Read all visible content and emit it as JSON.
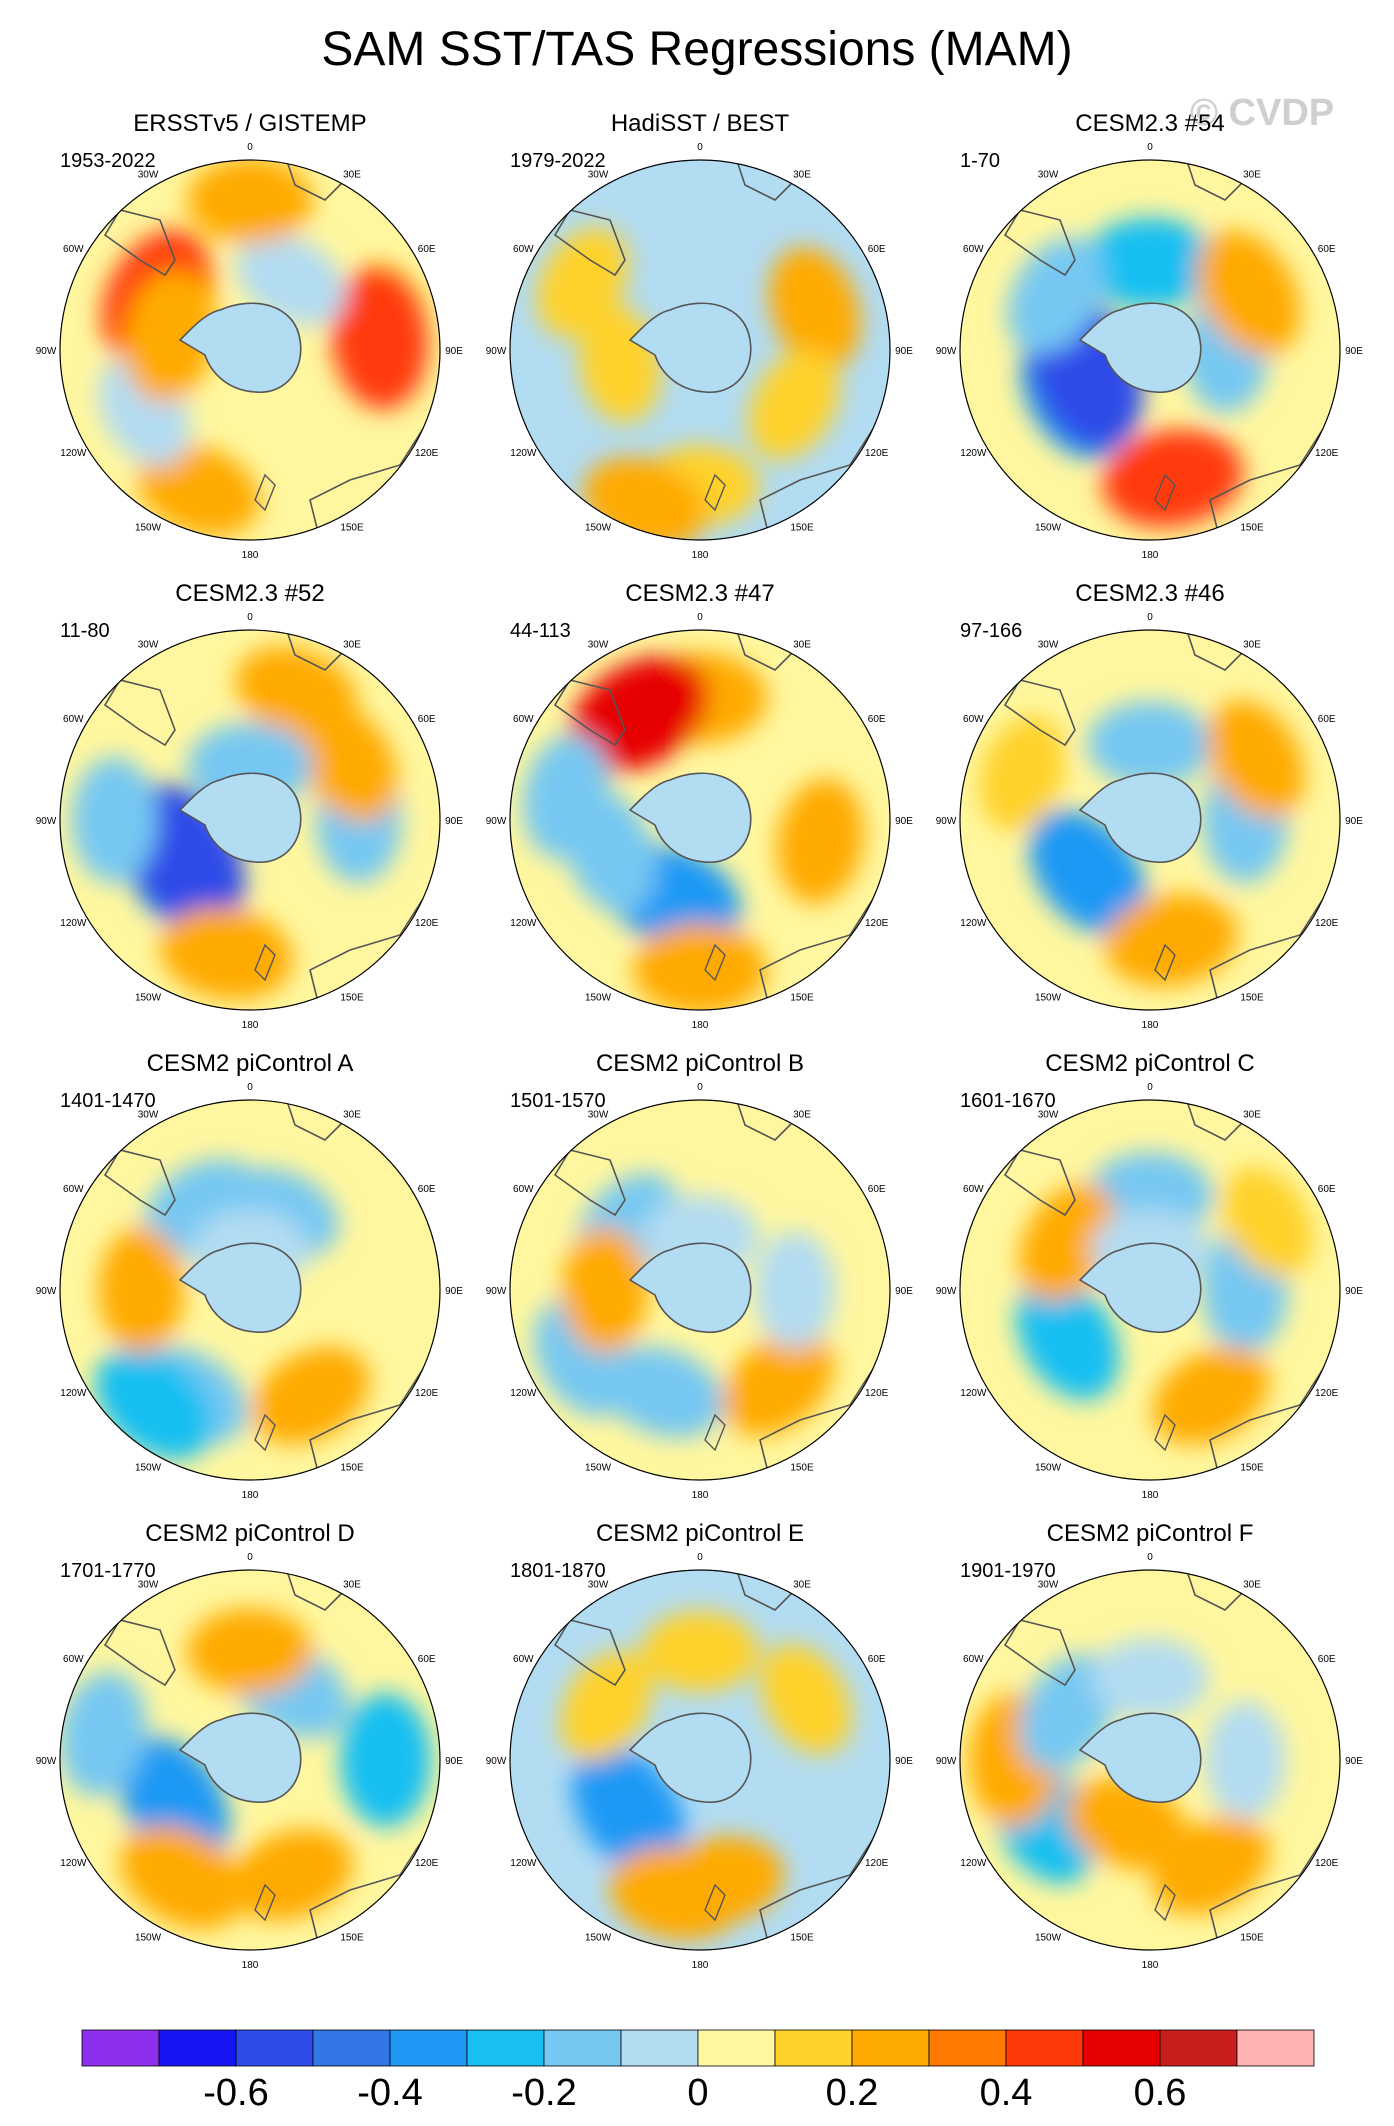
{
  "title": "SAM SST/TAS Regressions (MAM)",
  "watermark": "© CVDP",
  "lon_labels": [
    "0",
    "30E",
    "60E",
    "90E",
    "120E",
    "150E",
    "180",
    "150W",
    "120W",
    "90W",
    "60W",
    "30W"
  ],
  "colorbar": {
    "colors": [
      "#8F2FEE",
      "#1616F5",
      "#2F4CE8",
      "#3377E6",
      "#1E99F5",
      "#19BFF2",
      "#76C8F2",
      "#B2DCF2",
      "#FFF79F",
      "#FFD229",
      "#FFAA00",
      "#FF7800",
      "#FF3A0A",
      "#E60000",
      "#C81E1E",
      "#FFB2B2"
    ],
    "labels": [
      "-0.6",
      "-0.4",
      "-0.2",
      "0",
      "0.2",
      "0.4",
      "0.6"
    ]
  },
  "chart_data": [
    {
      "type": "polar-contour",
      "title": "ERSSTv5 / GISTEMP",
      "years": "1953-2022",
      "base": "#FFF79F",
      "blobs": [
        {
          "lon": 300,
          "lat": -55,
          "val": 0.2
        },
        {
          "lon": 300,
          "lat": -50,
          "val": 0.4
        },
        {
          "lon": 80,
          "lat": -40,
          "val": 0.2
        },
        {
          "lon": 85,
          "lat": -42,
          "val": 0.4
        },
        {
          "lon": 200,
          "lat": -35,
          "val": 0.2
        },
        {
          "lon": 240,
          "lat": -45,
          "val": -0.1
        },
        {
          "lon": 30,
          "lat": -60,
          "val": -0.1
        },
        {
          "lon": 0,
          "lat": -35,
          "val": 0.2
        },
        {
          "lon": 280,
          "lat": -60,
          "val": 0.3
        }
      ]
    },
    {
      "type": "polar-contour",
      "title": "HadiSST / BEST",
      "years": "1979-2022",
      "base": "#B2DCF2",
      "blobs": [
        {
          "lon": 70,
          "lat": -45,
          "val": 0.2
        },
        {
          "lon": 180,
          "lat": -40,
          "val": 0.1
        },
        {
          "lon": 200,
          "lat": -30,
          "val": 0.2
        },
        {
          "lon": 300,
          "lat": -40,
          "val": 0.1
        },
        {
          "lon": 120,
          "lat": -50,
          "val": 0.1
        },
        {
          "lon": 260,
          "lat": -60,
          "val": 0.1
        }
      ]
    },
    {
      "type": "polar-contour",
      "title": "CESM2.3 #54",
      "years": "1-70",
      "base": "#FFF79F",
      "blobs": [
        {
          "lon": 240,
          "lat": -58,
          "val": -0.4
        },
        {
          "lon": 250,
          "lat": -65,
          "val": -0.6
        },
        {
          "lon": 0,
          "lat": -58,
          "val": -0.3
        },
        {
          "lon": 90,
          "lat": -62,
          "val": -0.2
        },
        {
          "lon": 60,
          "lat": -48,
          "val": 0.3
        },
        {
          "lon": 170,
          "lat": -42,
          "val": 0.4
        },
        {
          "lon": 300,
          "lat": -50,
          "val": -0.2
        }
      ]
    },
    {
      "type": "polar-contour",
      "title": "CESM2.3 #52",
      "years": "11-80",
      "base": "#FFF79F",
      "blobs": [
        {
          "lon": 235,
          "lat": -58,
          "val": -0.4
        },
        {
          "lon": 240,
          "lat": -62,
          "val": -0.6
        },
        {
          "lon": 270,
          "lat": -40,
          "val": -0.2
        },
        {
          "lon": 90,
          "lat": -50,
          "val": -0.2
        },
        {
          "lon": 190,
          "lat": -40,
          "val": 0.3
        },
        {
          "lon": 60,
          "lat": -48,
          "val": 0.2
        },
        {
          "lon": 20,
          "lat": -40,
          "val": 0.2
        },
        {
          "lon": 0,
          "lat": -70,
          "val": -0.2
        }
      ]
    },
    {
      "type": "polar-contour",
      "title": "CESM2.3 #47",
      "years": "44-113",
      "base": "#FFF79F",
      "blobs": [
        {
          "lon": 0,
          "lat": -45,
          "val": 0.3
        },
        {
          "lon": 330,
          "lat": -45,
          "val": 0.5
        },
        {
          "lon": 200,
          "lat": -60,
          "val": -0.4
        },
        {
          "lon": 250,
          "lat": -55,
          "val": -0.2
        },
        {
          "lon": 180,
          "lat": -35,
          "val": 0.3
        },
        {
          "lon": 100,
          "lat": -45,
          "val": 0.2
        },
        {
          "lon": 280,
          "lat": -40,
          "val": -0.2
        }
      ]
    },
    {
      "type": "polar-contour",
      "title": "CESM2.3 #46",
      "years": "97-166",
      "base": "#FFF79F",
      "blobs": [
        {
          "lon": 230,
          "lat": -60,
          "val": -0.4
        },
        {
          "lon": 0,
          "lat": -62,
          "val": -0.2
        },
        {
          "lon": 90,
          "lat": -55,
          "val": -0.2
        },
        {
          "lon": 170,
          "lat": -45,
          "val": 0.3
        },
        {
          "lon": 60,
          "lat": -45,
          "val": 0.2
        },
        {
          "lon": 290,
          "lat": -40,
          "val": 0.1
        }
      ]
    },
    {
      "type": "polar-contour",
      "title": "CESM2 piControl A",
      "years": "1401-1470",
      "base": "#FFF79F",
      "blobs": [
        {
          "lon": 210,
          "lat": -45,
          "val": -0.2
        },
        {
          "lon": 220,
          "lat": -35,
          "val": -0.3
        },
        {
          "lon": 330,
          "lat": -55,
          "val": -0.2
        },
        {
          "lon": 20,
          "lat": -60,
          "val": -0.2
        },
        {
          "lon": 270,
          "lat": -50,
          "val": 0.2
        },
        {
          "lon": 150,
          "lat": -45,
          "val": 0.2
        },
        {
          "lon": 0,
          "lat": -75,
          "val": -0.1
        }
      ]
    },
    {
      "type": "polar-contour",
      "title": "CESM2 piControl B",
      "years": "1501-1570",
      "base": "#FFF79F",
      "blobs": [
        {
          "lon": 310,
          "lat": -55,
          "val": -0.2
        },
        {
          "lon": 240,
          "lat": -40,
          "val": -0.2
        },
        {
          "lon": 200,
          "lat": -50,
          "val": -0.2
        },
        {
          "lon": 270,
          "lat": -55,
          "val": 0.2
        },
        {
          "lon": 140,
          "lat": -45,
          "val": 0.2
        },
        {
          "lon": 90,
          "lat": -55,
          "val": -0.1
        },
        {
          "lon": 0,
          "lat": -70,
          "val": -0.1
        }
      ]
    },
    {
      "type": "polar-contour",
      "title": "CESM2 piControl C",
      "years": "1601-1670",
      "base": "#FFF79F",
      "blobs": [
        {
          "lon": 0,
          "lat": -55,
          "val": -0.2
        },
        {
          "lon": 90,
          "lat": -55,
          "val": -0.2
        },
        {
          "lon": 240,
          "lat": -55,
          "val": -0.3
        },
        {
          "lon": 300,
          "lat": -55,
          "val": 0.2
        },
        {
          "lon": 150,
          "lat": -45,
          "val": 0.2
        },
        {
          "lon": 60,
          "lat": -40,
          "val": 0.1
        },
        {
          "lon": 0,
          "lat": -75,
          "val": -0.1
        }
      ]
    },
    {
      "type": "polar-contour",
      "title": "CESM2 piControl D",
      "years": "1701-1770",
      "base": "#FFF79F",
      "blobs": [
        {
          "lon": 240,
          "lat": -58,
          "val": -0.4
        },
        {
          "lon": 90,
          "lat": -40,
          "val": -0.3
        },
        {
          "lon": 30,
          "lat": -60,
          "val": -0.2
        },
        {
          "lon": 0,
          "lat": -50,
          "val": 0.2
        },
        {
          "lon": 210,
          "lat": -40,
          "val": 0.3
        },
        {
          "lon": 160,
          "lat": -45,
          "val": 0.2
        },
        {
          "lon": 280,
          "lat": -35,
          "val": -0.2
        }
      ]
    },
    {
      "type": "polar-contour",
      "title": "CESM2 piControl E",
      "years": "1801-1870",
      "base": "#B2DCF2",
      "blobs": [
        {
          "lon": 235,
          "lat": -58,
          "val": -0.4
        },
        {
          "lon": 190,
          "lat": -40,
          "val": 0.3
        },
        {
          "lon": 170,
          "lat": -45,
          "val": 0.2
        },
        {
          "lon": 0,
          "lat": -50,
          "val": 0.1
        },
        {
          "lon": 60,
          "lat": -45,
          "val": 0.1
        },
        {
          "lon": 300,
          "lat": -50,
          "val": 0.1
        }
      ]
    },
    {
      "type": "polar-contour",
      "title": "CESM2 piControl F",
      "years": "1901-1970",
      "base": "#FFF79F",
      "blobs": [
        {
          "lon": 240,
          "lat": -45,
          "val": -0.3
        },
        {
          "lon": 270,
          "lat": -40,
          "val": 0.3
        },
        {
          "lon": 300,
          "lat": -55,
          "val": -0.2
        },
        {
          "lon": 0,
          "lat": -60,
          "val": -0.1
        },
        {
          "lon": 90,
          "lat": -55,
          "val": -0.1
        },
        {
          "lon": 150,
          "lat": -45,
          "val": 0.2
        },
        {
          "lon": 200,
          "lat": -65,
          "val": 0.2
        }
      ]
    }
  ]
}
